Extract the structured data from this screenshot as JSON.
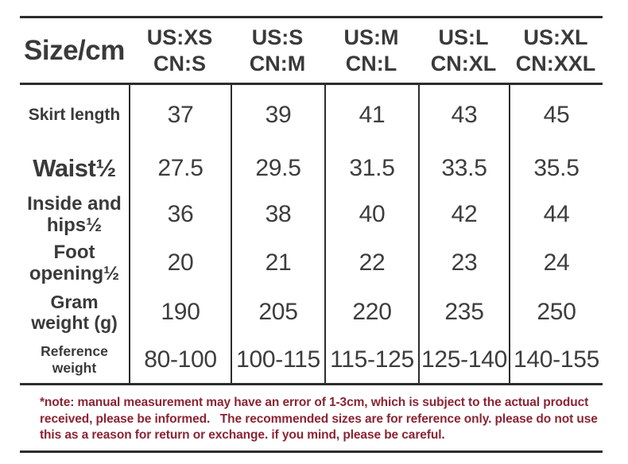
{
  "colors": {
    "background": "#ffffff",
    "text": "#3a3a3a",
    "line": "#2d2d2d",
    "note_text": "#8b2433"
  },
  "chart_data": {
    "type": "table",
    "title": "Size/cm",
    "header": {
      "corner": "Size/cm",
      "columns": [
        {
          "us": "US:XS",
          "cn": "CN:S"
        },
        {
          "us": "US:S",
          "cn": "CN:M"
        },
        {
          "us": "US:M",
          "cn": "CN:L"
        },
        {
          "us": "US:L",
          "cn": "CN:XL"
        },
        {
          "us": "US:XL",
          "cn": "CN:XXL"
        }
      ]
    },
    "rows": [
      {
        "label": "Skirt length",
        "values": [
          "37",
          "39",
          "41",
          "43",
          "45"
        ]
      },
      {
        "label": "Waist½",
        "values": [
          "27.5",
          "29.5",
          "31.5",
          "33.5",
          "35.5"
        ]
      },
      {
        "label": "Inside and\nhips½",
        "values": [
          "36",
          "38",
          "40",
          "42",
          "44"
        ]
      },
      {
        "label": "Foot\nopening½",
        "values": [
          "20",
          "21",
          "22",
          "23",
          "24"
        ]
      },
      {
        "label": "Gram\nweight (g)",
        "values": [
          "190",
          "205",
          "220",
          "235",
          "250"
        ]
      },
      {
        "label": "Reference weight",
        "values": [
          "80-100",
          "100-115",
          "115-125",
          "125-140",
          "140-155"
        ]
      }
    ]
  },
  "note": {
    "text": "*note: manual measurement may have an error of 1-3cm, which is subject to the actual product received, please be informed.   The recommended sizes are for reference only. please do not use this as a reason for return or exchange. if you mind, please be careful."
  }
}
